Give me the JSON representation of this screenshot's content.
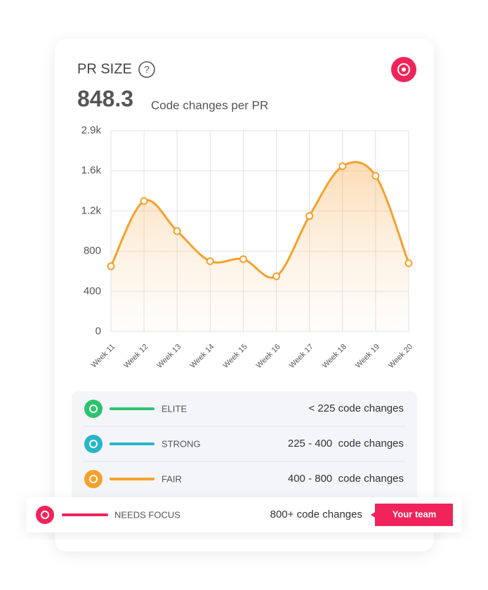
{
  "header": {
    "title": "PR SIZE",
    "value": "848.3",
    "unit": "Code changes per PR"
  },
  "chart_data": {
    "type": "line",
    "categories": [
      "Week 11",
      "Week 12",
      "Week 13",
      "Week 14",
      "Week 15",
      "Week 16",
      "Week 17",
      "Week 18",
      "Week 19",
      "Week 20"
    ],
    "values": [
      650,
      1300,
      1000,
      700,
      720,
      550,
      1150,
      1750,
      1550,
      680
    ],
    "color": "#f4a12c",
    "ylim": [
      0,
      2900
    ],
    "yticks": [
      0,
      400,
      800,
      {
        "value": 1200,
        "label": "1.2k"
      },
      {
        "value": 1600,
        "label": "1.6k"
      },
      {
        "value": 2900,
        "label": "2.9k"
      }
    ],
    "grid": true
  },
  "levels": [
    {
      "label": "ELITE",
      "range": "< 225 code changes",
      "color": "#2ec26e"
    },
    {
      "label": "STRONG",
      "range": "225 - 400  code changes",
      "color": "#27b6c8"
    },
    {
      "label": "FAIR",
      "range": "400 - 800  code changes",
      "color": "#f4a12c"
    },
    {
      "label": "NEEDS FOCUS",
      "range": "800+ code changes",
      "color": "#f0245a"
    }
  ],
  "badge": "Your team"
}
